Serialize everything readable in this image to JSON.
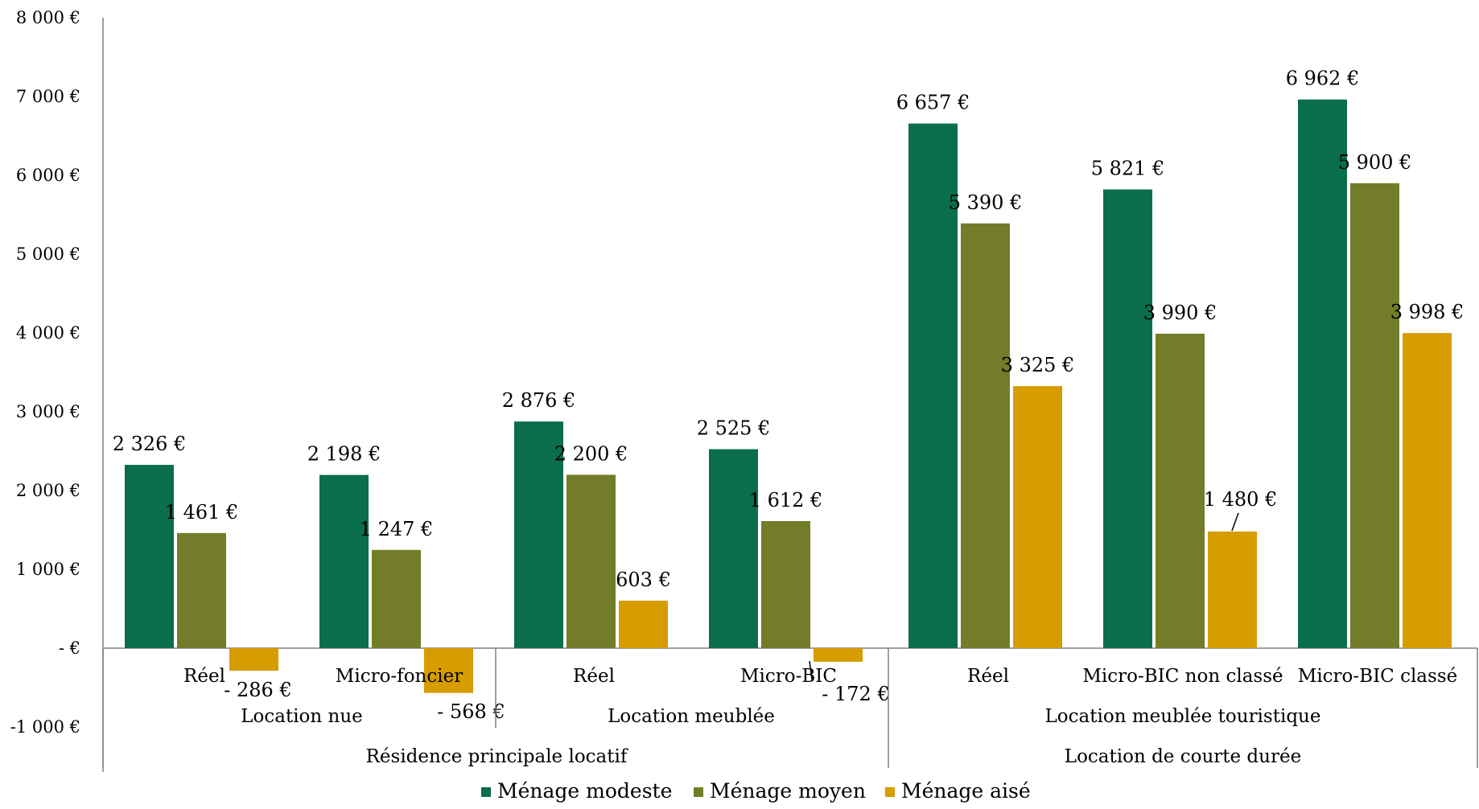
{
  "chart_data": {
    "type": "bar",
    "title": "",
    "xlabel": "",
    "ylabel": "",
    "ylim": [
      -1000,
      8000
    ],
    "yticks": [
      {
        "value": 8000,
        "label": "8 000 €"
      },
      {
        "value": 7000,
        "label": "7 000 €"
      },
      {
        "value": 6000,
        "label": "6 000 €"
      },
      {
        "value": 5000,
        "label": "5 000 €"
      },
      {
        "value": 4000,
        "label": "4 000 €"
      },
      {
        "value": 3000,
        "label": "3 000 €"
      },
      {
        "value": 2000,
        "label": "2 000 €"
      },
      {
        "value": 1000,
        "label": "1 000 €"
      },
      {
        "value": 0,
        "label": "-   €"
      },
      {
        "value": -1000,
        "label": "-1 000 €"
      }
    ],
    "categories": [
      "Réel",
      "Micro-foncier",
      "Réel",
      "Micro-BIC",
      "Réel",
      "Micro-BIC non classé",
      "Micro-BIC classé"
    ],
    "groups": [
      {
        "label": "Location nue",
        "categories": [
          0,
          1
        ]
      },
      {
        "label": "Location meublée",
        "categories": [
          2,
          3
        ]
      },
      {
        "label": "Location meublée touristique",
        "categories": [
          4,
          5,
          6
        ]
      }
    ],
    "supergroups": [
      {
        "label": "Résidence principale locatif",
        "categories": [
          0,
          1,
          2,
          3
        ]
      },
      {
        "label": "Location de courte durée",
        "categories": [
          4,
          5,
          6
        ]
      }
    ],
    "series": [
      {
        "name": "Ménage modeste",
        "color": "#0b6e4a",
        "values": [
          2326,
          2198,
          2876,
          2525,
          6657,
          5821,
          6962
        ],
        "labels": [
          "2 326 €",
          "2 198 €",
          "2 876 €",
          "2 525 €",
          "6 657 €",
          "5 821 €",
          "6 962 €"
        ]
      },
      {
        "name": "Ménage moyen",
        "color": "#737c28",
        "values": [
          1461,
          1247,
          2200,
          1612,
          5390,
          3990,
          5900
        ],
        "labels": [
          "1 461 €",
          "1 247 €",
          "2 200 €",
          "1 612 €",
          "5 390 €",
          "3 990 €",
          "5 900 €"
        ]
      },
      {
        "name": "Ménage aisé",
        "color": "#d69c00",
        "values": [
          -286,
          -568,
          603,
          -172,
          3325,
          1480,
          3998
        ],
        "labels": [
          "- 286 €",
          "- 568 €",
          "603 €",
          "- 172 €",
          "3 325 €",
          "1 480 €",
          "3 998 €"
        ]
      }
    ],
    "legend": "bottom",
    "grid": false
  }
}
